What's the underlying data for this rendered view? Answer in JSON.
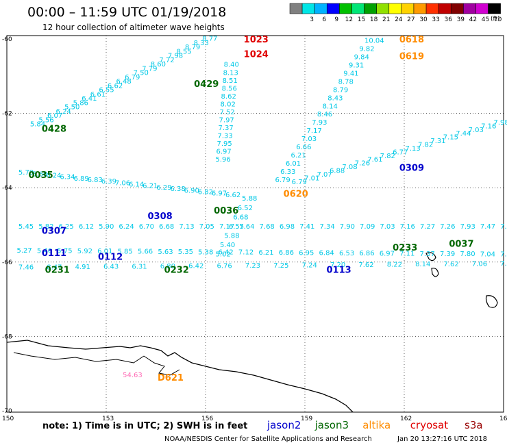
{
  "header": {
    "title": "00:00 – 11:59 UTC 01/19/2018",
    "subtitle": "12 hour collection of altimeter wave heights"
  },
  "legend": {
    "unit": "(ft)",
    "bins": [
      {
        "label": "",
        "color": "#808080"
      },
      {
        "label": "3",
        "color": "#00e5e5"
      },
      {
        "label": "6",
        "color": "#00b2ff"
      },
      {
        "label": "9",
        "color": "#0000ff"
      },
      {
        "label": "12",
        "color": "#00c000"
      },
      {
        "label": "15",
        "color": "#00e676"
      },
      {
        "label": "18",
        "color": "#00a000"
      },
      {
        "label": "21",
        "color": "#90e000"
      },
      {
        "label": "24",
        "color": "#ffff00"
      },
      {
        "label": "27",
        "color": "#ffd200"
      },
      {
        "label": "30",
        "color": "#ff9a00"
      },
      {
        "label": "33",
        "color": "#ff3000"
      },
      {
        "label": "36",
        "color": "#c00000"
      },
      {
        "label": "39",
        "color": "#800000"
      },
      {
        "label": "42",
        "color": "#a000a0"
      },
      {
        "label": "45",
        "color": "#d000d0"
      },
      {
        "label": "70",
        "color": "#000000"
      }
    ]
  },
  "axes": {
    "lon_labels": [
      "150",
      "153",
      "156",
      "159",
      "162",
      "165"
    ],
    "lat_labels": [
      "-60",
      "-62",
      "-64",
      "-66",
      "-68",
      "-70"
    ]
  },
  "colors": {
    "cyan": "#00c8e6",
    "jason2": "#0000cc",
    "jason3": "#006600",
    "altika": "#ff8c00",
    "cryosat": "#e00000",
    "s3a": "#990000",
    "pink": "#ff69b4"
  },
  "tracks": [
    {
      "tag": "0428",
      "sat": "jason3",
      "lon": 151.3,
      "lat": -62.4,
      "values": [
        "5.84",
        "5.56",
        "6.07",
        "6.24",
        "5.50",
        "5.86",
        "6.41",
        "6.61",
        "6.55",
        "6.62",
        "6.48",
        "6.79",
        "7.50",
        "7.79",
        "8.60",
        "7.72",
        "7.98",
        "8.55",
        "8.79",
        "8.33",
        "8.77"
      ],
      "start_lon": 150.7,
      "start_lat": -62.35,
      "end_lon": 155.9,
      "end_lat": -60.05
    },
    {
      "tag": "0429",
      "sat": "jason3",
      "lon": 155.9,
      "lat": -61.2,
      "values": [],
      "start_lon": 0,
      "start_lat": 0,
      "end_lon": 0,
      "end_lat": 0
    },
    {
      "tag": "1023",
      "sat": "cryosat",
      "lon": 157.4,
      "lat": -60.0,
      "values": [
        "8.40",
        "8.13",
        "8.51",
        "8.56",
        "8.62",
        "8.02",
        "7.52",
        "7.97",
        "7.37",
        "7.33",
        "7.95",
        "6.97",
        "5.96"
      ],
      "start_lon": 156.55,
      "start_lat": -60.75,
      "end_lon": 156.3,
      "end_lat": -63.3
    },
    {
      "tag": "1024",
      "sat": "cryosat",
      "lon": 157.4,
      "lat": -60.4,
      "values": [],
      "start_lon": 0,
      "start_lat": 0,
      "end_lon": 0,
      "end_lat": 0
    },
    {
      "tag": "0618",
      "sat": "altika",
      "lon": 162.1,
      "lat": -60.0,
      "values": [
        "10.04",
        "9.82",
        "9.84",
        "9.31",
        "9.41",
        "8.78",
        "8.79",
        "8.43",
        "8.14",
        "8.46",
        "7.93",
        "7.17",
        "7.03",
        "6.66",
        "6.21",
        "6.01",
        "6.33",
        "6.79"
      ],
      "start_lon": 160.8,
      "start_lat": -60.1,
      "end_lon": 158.1,
      "end_lat": -63.85
    },
    {
      "tag": "0619",
      "sat": "altika",
      "lon": 162.1,
      "lat": -60.45,
      "values": [],
      "start_lon": 0,
      "start_lat": 0,
      "end_lon": 0,
      "end_lat": 0
    },
    {
      "tag": "0620",
      "sat": "altika",
      "lon": 158.6,
      "lat": -64.15,
      "values": [],
      "start_lon": 0,
      "start_lat": 0,
      "end_lon": 0,
      "end_lat": 0
    },
    {
      "tag": "0309",
      "sat": "jason2",
      "lon": 162.1,
      "lat": -63.45,
      "values": [
        "7.98",
        "7.16",
        "7.03",
        "7.44",
        "7.15",
        "7.31",
        "7.82",
        "7.13",
        "6.77",
        "7.82",
        "7.61",
        "7.26",
        "7.08",
        "6.88",
        "7.07",
        "7.01",
        "6.79"
      ],
      "start_lon": 164.7,
      "start_lat": -62.3,
      "end_lon": 158.6,
      "end_lat": -63.9
    },
    {
      "tag": "0035",
      "sat": "jason3",
      "lon": 150.9,
      "lat": -63.65,
      "values": [
        "5.79",
        "5.60",
        "6.24",
        "6.34",
        "6.89",
        "6.83",
        "6.39",
        "7.06",
        "6.14",
        "6.21",
        "6.29",
        "6.38",
        "6.90",
        "6.82",
        "6.97",
        "6.62"
      ],
      "start_lon": 150.35,
      "start_lat": -63.65,
      "end_lon": 156.6,
      "end_lat": -64.25
    },
    {
      "tag": "0308",
      "sat": "jason2",
      "lon": 154.5,
      "lat": -64.75,
      "values": [],
      "start_lon": 0,
      "start_lat": 0,
      "end_lon": 0,
      "end_lat": 0
    },
    {
      "tag": "0036",
      "sat": "jason3",
      "lon": 156.5,
      "lat": -64.6,
      "values": [
        "5.88",
        "6.52",
        "6.68",
        "6.55",
        "5.88",
        "5.40",
        "5.02"
      ],
      "start_lon": 157.1,
      "start_lat": -64.35,
      "end_lon": 156.3,
      "end_lat": -65.85
    },
    {
      "tag": "0307",
      "sat": "jason2",
      "lon": 151.3,
      "lat": -65.15,
      "values": [
        "5.45",
        "5.82",
        "6.25",
        "6.12",
        "5.90",
        "6.24",
        "6.70",
        "6.68",
        "7.13",
        "7.05",
        "7.17",
        "7.64",
        "7.68",
        "6.98",
        "7.41",
        "7.34",
        "7.90",
        "7.09",
        "7.03",
        "7.16",
        "7.27",
        "7.26",
        "7.93",
        "7.47",
        "7.20"
      ],
      "start_lon": 150.35,
      "start_lat": -65.1,
      "end_lon": 164.9,
      "end_lat": -65.1
    },
    {
      "tag": "0233",
      "sat": "jason3",
      "lon": 161.9,
      "lat": -65.6,
      "values": [],
      "start_lon": 0,
      "start_lat": 0,
      "end_lon": 0,
      "end_lat": 0
    },
    {
      "tag": "0037",
      "sat": "jason3",
      "lon": 163.6,
      "lat": -65.5,
      "values": [],
      "start_lon": 0,
      "start_lat": 0,
      "end_lon": 0,
      "end_lat": 0
    },
    {
      "tag": "0111",
      "sat": "jason2",
      "lon": 151.3,
      "lat": -65.75,
      "values": [
        "5.27",
        "5.46",
        "5.75",
        "5.92",
        "6.01",
        "5.85",
        "5.66",
        "5.63",
        "5.35",
        "5.38",
        "6.42",
        "7.12",
        "6.21",
        "6.86",
        "6.95",
        "6.84",
        "6.53",
        "6.86",
        "6.97",
        "7.11",
        "7.37",
        "7.39",
        "7.80",
        "7.04",
        "7.43"
      ],
      "start_lon": 150.3,
      "start_lat": -65.75,
      "end_lon": 164.9,
      "end_lat": -65.85
    },
    {
      "tag": "0112",
      "sat": "jason2",
      "lon": 153.0,
      "lat": -65.85,
      "values": [],
      "start_lon": 0,
      "start_lat": 0,
      "end_lon": 0,
      "end_lat": 0
    },
    {
      "tag": "0231",
      "sat": "jason3",
      "lon": 151.4,
      "lat": -66.2,
      "values": [
        "7.46",
        "8.47",
        "4.91",
        "6.43",
        "6.31",
        "6.80",
        "6.42",
        "6.76",
        "7.23",
        "7.25",
        "7.24",
        "7.20",
        "7.62",
        "8.22",
        "8.14",
        "7.62",
        "7.06",
        "7.6"
      ],
      "start_lon": 150.35,
      "start_lat": -66.2,
      "end_lon": 164.9,
      "end_lat": -66.1
    },
    {
      "tag": "0232",
      "sat": "jason3",
      "lon": 155.0,
      "lat": -66.2,
      "values": [],
      "start_lon": 0,
      "start_lat": 0,
      "end_lon": 0,
      "end_lat": 0
    },
    {
      "tag": "0113",
      "sat": "jason2",
      "lon": 159.9,
      "lat": -66.2,
      "values": [],
      "start_lon": 0,
      "start_lat": 0,
      "end_lon": 0,
      "end_lat": 0
    },
    {
      "tag": "D621",
      "sat": "altika",
      "lon": 154.8,
      "lat": -69.1,
      "values": [
        "54.63"
      ],
      "start_lon": 153.5,
      "start_lat": -69.1,
      "end_lon": 153.5,
      "end_lat": -69.1
    }
  ],
  "footer": {
    "note": "note: 1) Time is in UTC; 2) SWH is in feet",
    "satellites": [
      {
        "name": "jason2",
        "color": "#0000cc"
      },
      {
        "name": "jason3",
        "color": "#006600"
      },
      {
        "name": "altika",
        "color": "#ff8c00"
      },
      {
        "name": "cryosat",
        "color": "#e00000"
      },
      {
        "name": "s3a",
        "color": "#990000"
      }
    ],
    "credit": "NOAA/NESDIS Center for Satellite Applications and Research",
    "timestamp": "Jan 20 13:27:16 UTC 2018"
  }
}
